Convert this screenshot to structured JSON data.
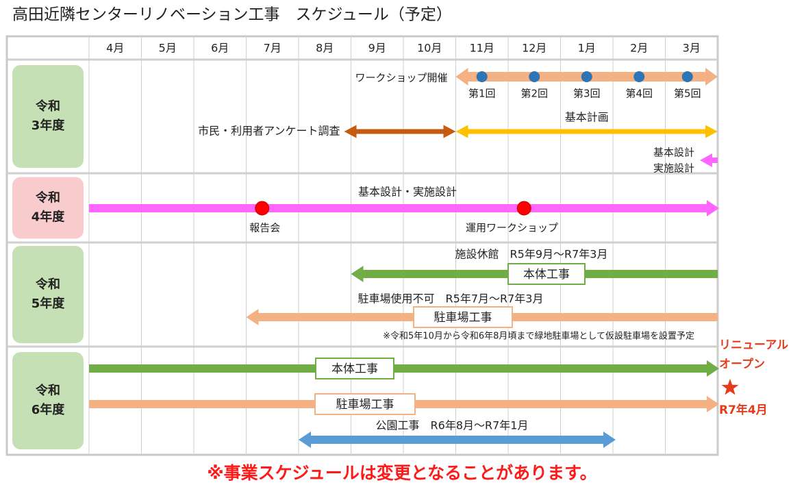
{
  "title": "高田近隣センターリノベーション工事　スケジュール（予定）",
  "footer_note": "※事業スケジュールは変更となることがあります。",
  "colors": {
    "grid": "#cfcfcf",
    "frame": "#c8c8c8",
    "year_green": "#c5e0b4",
    "year_pink": "#f8cbcc",
    "workshop_orange": "#f4b183",
    "survey_brown": "#c55a11",
    "plan_yellow": "#ffc000",
    "design_magenta": "#ff66ff",
    "construction_green": "#70ad47",
    "park_blue": "#5b9bd5",
    "dot_blue": "#2e75b6",
    "dot_red": "#ff0000",
    "accent_red": "#e53b1c"
  },
  "chart_data": {
    "type": "gantt",
    "title": "高田近隣センターリノベーション工事　スケジュール（予定）",
    "months": [
      "4月",
      "5月",
      "6月",
      "7月",
      "8月",
      "9月",
      "10月",
      "11月",
      "12月",
      "1月",
      "2月",
      "3月"
    ],
    "years": [
      {
        "line1": "令和",
        "line2": "3年度",
        "highlight": false
      },
      {
        "line1": "令和",
        "line2": "4年度",
        "highlight": true
      },
      {
        "line1": "令和",
        "line2": "5年度",
        "highlight": false
      },
      {
        "line1": "令和",
        "line2": "6年度",
        "highlight": false
      }
    ],
    "tasks": [
      {
        "year": "令和3年度",
        "label": "ワークショップ開催",
        "start": "11月",
        "end": "3月",
        "arrows": "both",
        "color": "workshop_orange",
        "milestones": [
          {
            "month": "11月",
            "label": "第1回"
          },
          {
            "month": "12月",
            "label": "第2回"
          },
          {
            "month": "1月",
            "label": "第3回"
          },
          {
            "month": "2月",
            "label": "第4回"
          },
          {
            "month": "3月",
            "label": "第5回"
          }
        ]
      },
      {
        "year": "令和3年度",
        "label": "市民・利用者アンケート調査",
        "start": "9月",
        "end": "10月",
        "arrows": "both",
        "color": "survey_brown"
      },
      {
        "year": "令和3年度",
        "label": "基本計画",
        "start": "11月",
        "end": "3月",
        "arrows": "both",
        "color": "plan_yellow"
      },
      {
        "year": "令和3年度",
        "label_lines": [
          "基本設計",
          "実施設計"
        ],
        "start": "3月",
        "end": "3月",
        "arrows": "left",
        "color": "design_magenta"
      },
      {
        "year": "令和4年度",
        "label": "基本設計・実施設計",
        "start": "4月",
        "end": "3月",
        "arrows": "right",
        "color": "design_magenta",
        "milestones": [
          {
            "month": "7月",
            "label": "報告会"
          },
          {
            "month": "12月",
            "label": "運用ワークショップ"
          }
        ]
      },
      {
        "year": "令和5年度",
        "label": "施設休館　R5年9月～R7年3月",
        "box": "本体工事",
        "start": "9月",
        "end": "3月",
        "arrows": "left",
        "color": "construction_green"
      },
      {
        "year": "令和5年度",
        "label": "駐車場使用不可　R5年7月～R7年3月",
        "box": "駐車場工事",
        "start": "7月",
        "end": "3月",
        "arrows": "left",
        "color": "workshop_orange",
        "note": "※令和5年10月から令和6年8月頃まで緑地駐車場として仮設駐車場を設置予定"
      },
      {
        "year": "令和6年度",
        "box": "本体工事",
        "start": "4月",
        "end": "3月",
        "arrows": "right",
        "color": "construction_green"
      },
      {
        "year": "令和6年度",
        "box": "駐車場工事",
        "start": "4月",
        "end": "3月",
        "arrows": "right",
        "color": "workshop_orange"
      },
      {
        "year": "令和6年度",
        "label": "公園工事　R6年8月～R7年1月",
        "start": "8月",
        "end": "1月",
        "arrows": "both",
        "color": "park_blue"
      }
    ],
    "completion": {
      "lines": [
        "リニューアル",
        "オープン"
      ],
      "icon": "star",
      "date": "R7年4月"
    }
  }
}
